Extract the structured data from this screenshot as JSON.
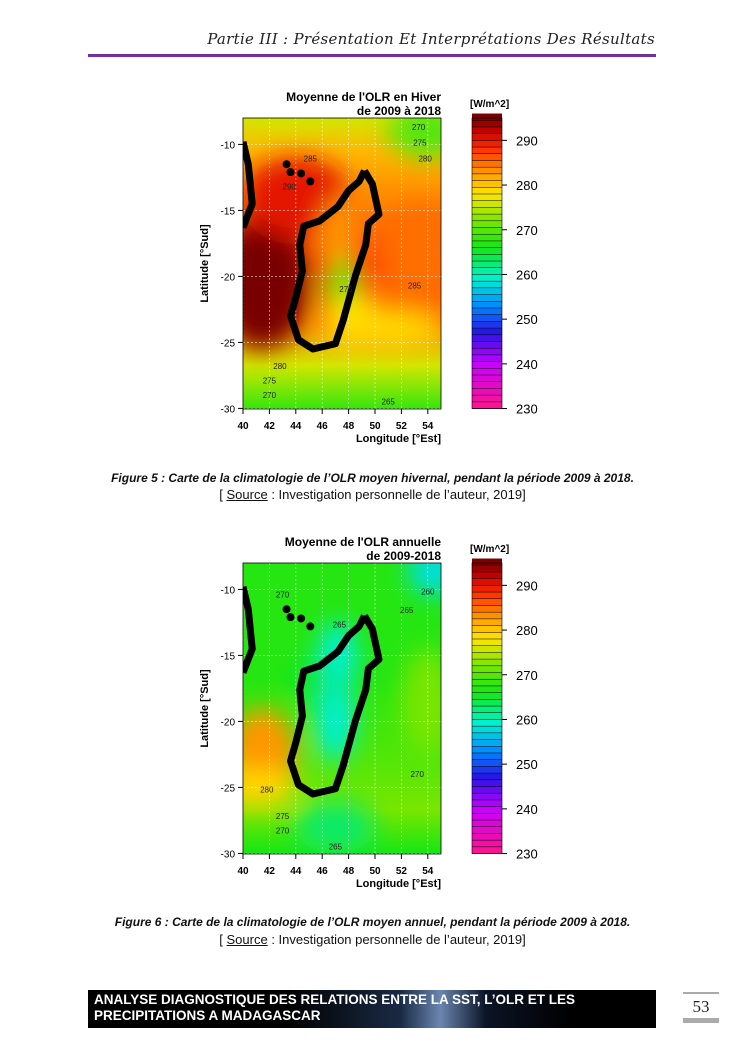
{
  "header": {
    "title": "Partie III : Présentation Et Interprétations Des Résultats"
  },
  "figures": [
    {
      "title_line1": "Moyenne de l'OLR en Hiver",
      "title_line2": "de 2009 à 2018",
      "unit": "[W/m^2]",
      "xlabel": "Longitude [°Est]",
      "ylabel": "Latitude [°Sud]",
      "xticks": [
        "40",
        "42",
        "44",
        "46",
        "48",
        "50",
        "52",
        "54"
      ],
      "yticks": [
        "-10",
        "-15",
        "-20",
        "-25",
        "-30"
      ],
      "colorbar_ticks": [
        "290",
        "280",
        "270",
        "260",
        "250",
        "240",
        "230"
      ],
      "contour_labels": [
        {
          "text": "270",
          "lon": 53.3,
          "lat": -8.9
        },
        {
          "text": "275",
          "lon": 53.4,
          "lat": -10.1
        },
        {
          "text": "280",
          "lon": 53.8,
          "lat": -11.3
        },
        {
          "text": "285",
          "lon": 45.1,
          "lat": -11.3
        },
        {
          "text": "290",
          "lon": 43.5,
          "lat": -13.4
        },
        {
          "text": "275",
          "lon": 47.8,
          "lat": -21.2
        },
        {
          "text": "285",
          "lon": 53.0,
          "lat": -20.9
        },
        {
          "text": "280",
          "lon": 42.8,
          "lat": -27.0
        },
        {
          "text": "275",
          "lon": 42.0,
          "lat": -28.1
        },
        {
          "text": "270",
          "lon": 42.0,
          "lat": -29.2
        },
        {
          "text": "265",
          "lon": 51.0,
          "lat": -29.7
        }
      ],
      "caption": "Figure 5 : Carte de la climatologie de l’OLR moyen hivernal, pendant la période 2009 à 2018.",
      "source_open": "[ ",
      "source_word": "Source",
      "source_rest": " : Investigation personnelle de l’auteur, 2019]"
    },
    {
      "title_line1": "Moyenne de l'OLR annuelle",
      "title_line2": "de 2009-2018",
      "unit": "[W/m^2]",
      "xlabel": "Longitude [°Est]",
      "ylabel": "Latitude [°Sud]",
      "xticks": [
        "40",
        "42",
        "44",
        "46",
        "48",
        "50",
        "52",
        "54"
      ],
      "yticks": [
        "-10",
        "-15",
        "-20",
        "-25",
        "-30"
      ],
      "colorbar_ticks": [
        "290",
        "280",
        "270",
        "260",
        "250",
        "240",
        "230"
      ],
      "contour_labels": [
        {
          "text": "270",
          "lon": 43.0,
          "lat": -10.6
        },
        {
          "text": "260",
          "lon": 54.0,
          "lat": -10.4
        },
        {
          "text": "265",
          "lon": 52.4,
          "lat": -11.8
        },
        {
          "text": "265",
          "lon": 47.3,
          "lat": -12.9
        },
        {
          "text": "270",
          "lon": 53.2,
          "lat": -24.2
        },
        {
          "text": "280",
          "lon": 41.8,
          "lat": -25.4
        },
        {
          "text": "275",
          "lon": 43.0,
          "lat": -27.4
        },
        {
          "text": "270",
          "lon": 43.0,
          "lat": -28.5
        },
        {
          "text": "265",
          "lon": 47.0,
          "lat": -29.7
        }
      ],
      "caption": "Figure 6 : Carte de la climatologie de l’OLR moyen annuel, pendant la période 2009 à 2018.",
      "source_open": "[ ",
      "source_word": "Source",
      "source_rest": " : Investigation personnelle de l’auteur, 2019]"
    }
  ],
  "footer": {
    "line1": "ANALYSE DIAGNOSTIQUE DES RELATIONS ENTRE LA SST, L’OLR ET LES",
    "line2": "PRECIPITATIONS A MADAGASCAR",
    "page_number": "53"
  }
}
